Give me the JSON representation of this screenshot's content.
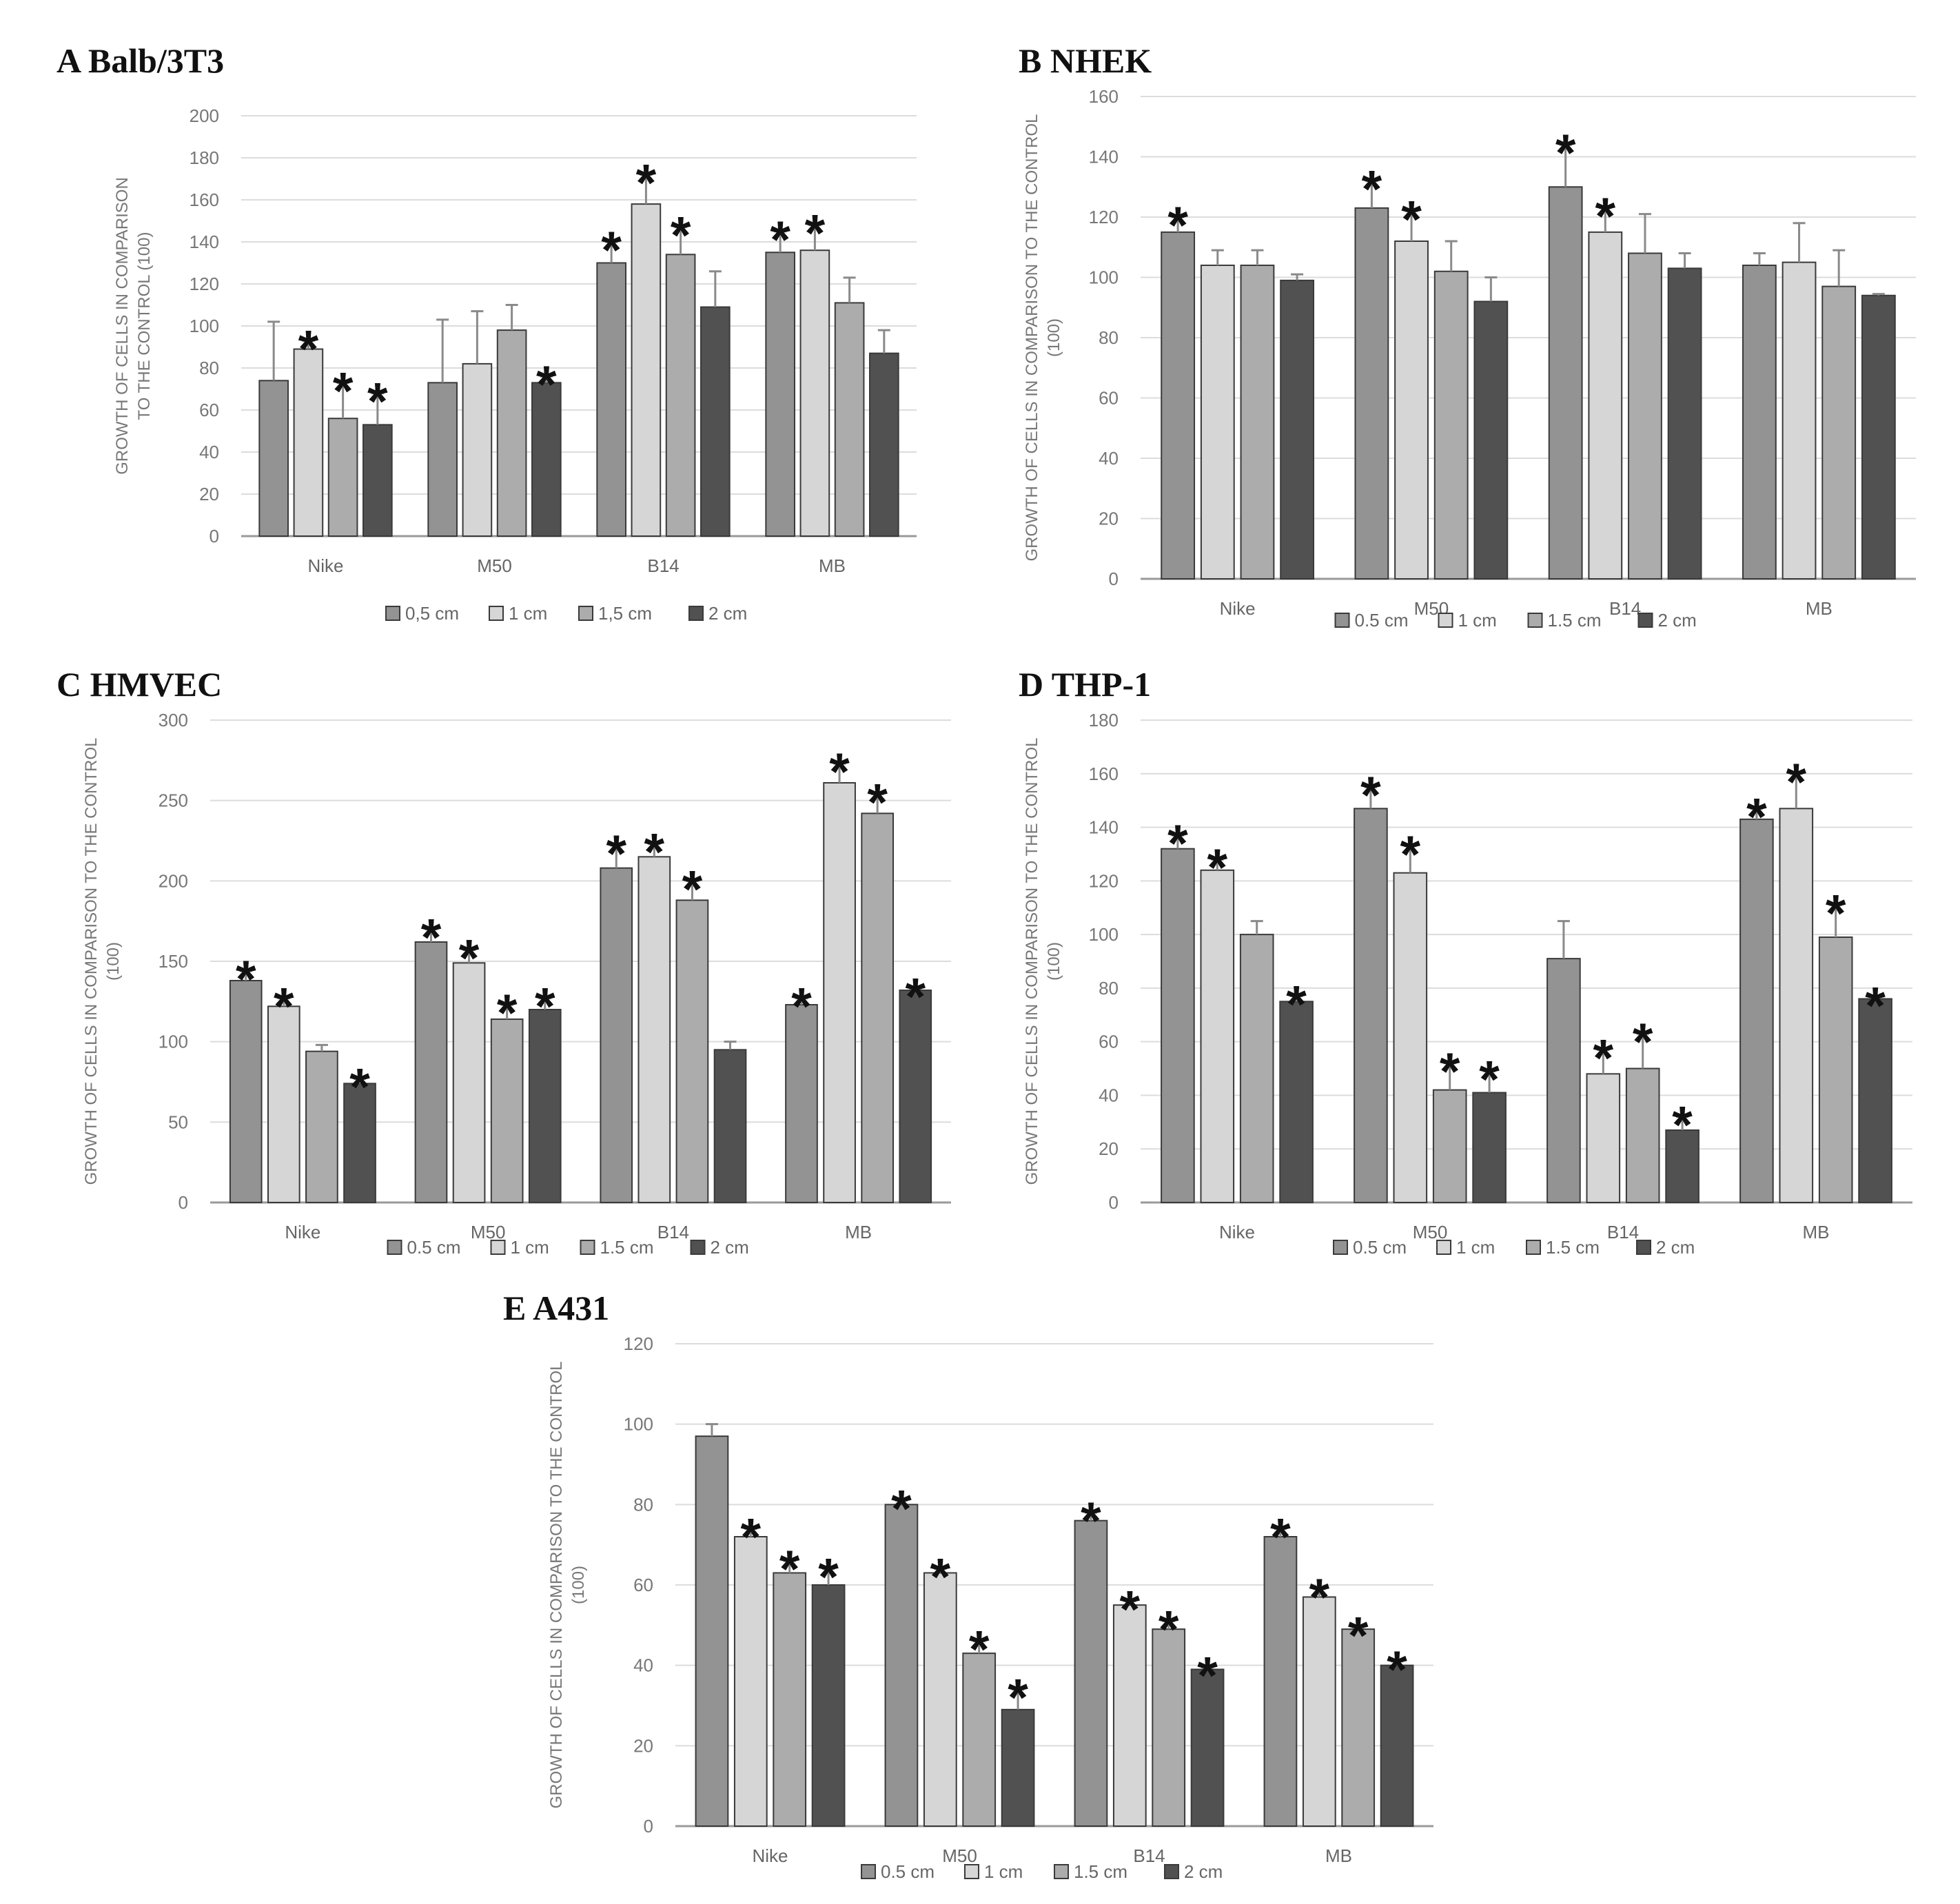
{
  "chart_data": [
    {
      "type": "bar",
      "title": "A Balb/3T3",
      "ylabel": [
        "GROWTH OF CELLS IN COMPARISON",
        "TO THE CONTROL (100)"
      ],
      "xlabel": "",
      "categories": [
        "Nike",
        "M50",
        "B14",
        "MB"
      ],
      "ylim": [
        0,
        200
      ],
      "ytick_step": 20,
      "legend": [
        "0,5 cm",
        "1 cm",
        "1,5 cm",
        "2 cm"
      ],
      "series": [
        {
          "name": "0,5 cm",
          "values": [
            74,
            73,
            130,
            135
          ],
          "errors": [
            28,
            30,
            10,
            10
          ],
          "sig": [
            false,
            false,
            true,
            true
          ]
        },
        {
          "name": "1 cm",
          "values": [
            89,
            82,
            158,
            136
          ],
          "errors": [
            4,
            25,
            14,
            12
          ],
          "sig": [
            true,
            false,
            true,
            true
          ]
        },
        {
          "name": "1,5 cm",
          "values": [
            56,
            98,
            134,
            111
          ],
          "errors": [
            17,
            12,
            13,
            12
          ],
          "sig": [
            true,
            false,
            true,
            false
          ]
        },
        {
          "name": "2 cm",
          "values": [
            53,
            73,
            109,
            87
          ],
          "errors": [
            15,
            3,
            17,
            11
          ],
          "sig": [
            true,
            true,
            false,
            false
          ]
        }
      ]
    },
    {
      "type": "bar",
      "title": "B NHEK",
      "ylabel": [
        "GROWTH OF CELLS IN COMPARISON TO THE CONTROL",
        "(100)"
      ],
      "xlabel": "",
      "categories": [
        "Nike",
        "M50",
        "B14",
        "MB"
      ],
      "ylim": [
        0,
        160
      ],
      "ytick_step": 20,
      "legend": [
        "0.5 cm",
        "1 cm",
        "1.5 cm",
        "2 cm"
      ],
      "series": [
        {
          "name": "0.5 cm",
          "values": [
            115,
            123,
            130,
            104
          ],
          "errors": [
            5,
            9,
            14,
            4
          ],
          "sig": [
            true,
            true,
            true,
            false
          ]
        },
        {
          "name": "1 cm",
          "values": [
            104,
            112,
            115,
            105
          ],
          "errors": [
            5,
            10,
            8,
            13
          ],
          "sig": [
            false,
            true,
            true,
            false
          ]
        },
        {
          "name": "1.5 cm",
          "values": [
            104,
            102,
            108,
            97
          ],
          "errors": [
            5,
            10,
            13,
            12
          ],
          "sig": [
            false,
            false,
            false,
            false
          ]
        },
        {
          "name": "2 cm",
          "values": [
            99,
            92,
            103,
            94
          ],
          "errors": [
            2,
            8,
            5,
            0.5
          ],
          "sig": [
            false,
            false,
            false,
            false
          ]
        }
      ]
    },
    {
      "type": "bar",
      "title": "C HMVEC",
      "ylabel": [
        "GROWTH OF CELLS IN COMPARISON TO THE CONTROL",
        "(100)"
      ],
      "xlabel": "",
      "categories": [
        "Nike",
        "M50",
        "B14",
        "MB"
      ],
      "ylim": [
        0,
        300
      ],
      "ytick_step": 50,
      "legend": [
        "0.5 cm",
        "1 cm",
        "1.5 cm",
        "2 cm"
      ],
      "series": [
        {
          "name": "0.5 cm",
          "values": [
            138,
            162,
            208,
            123
          ],
          "errors": [
            6,
            8,
            14,
            4
          ],
          "sig": [
            true,
            true,
            true,
            true
          ]
        },
        {
          "name": "1 cm",
          "values": [
            122,
            149,
            215,
            261
          ],
          "errors": [
            5,
            8,
            8,
            12
          ],
          "sig": [
            true,
            true,
            true,
            true
          ]
        },
        {
          "name": "1.5 cm",
          "values": [
            94,
            114,
            188,
            242
          ],
          "errors": [
            4,
            9,
            12,
            12
          ],
          "sig": [
            false,
            true,
            true,
            true
          ]
        },
        {
          "name": "2 cm",
          "values": [
            74,
            120,
            95,
            132
          ],
          "errors": [
            3,
            7,
            5,
            1
          ],
          "sig": [
            true,
            true,
            false,
            true
          ]
        }
      ]
    },
    {
      "type": "bar",
      "title": "D THP-1",
      "ylabel": [
        "GROWTH OF CELLS IN COMPARISON TO THE CONTROL",
        "(100)"
      ],
      "xlabel": "",
      "categories": [
        "Nike",
        "M50",
        "B14",
        "MB"
      ],
      "ylim": [
        0,
        180
      ],
      "ytick_step": 20,
      "legend": [
        "0.5 cm",
        "1 cm",
        "1.5 cm",
        "2 cm"
      ],
      "series": [
        {
          "name": "0.5 cm",
          "values": [
            132,
            147,
            91,
            143
          ],
          "errors": [
            5,
            8,
            14,
            4
          ],
          "sig": [
            true,
            true,
            false,
            true
          ]
        },
        {
          "name": "1 cm",
          "values": [
            124,
            123,
            48,
            147
          ],
          "errors": [
            4,
            10,
            9,
            13
          ],
          "sig": [
            true,
            true,
            true,
            true
          ]
        },
        {
          "name": "1.5 cm",
          "values": [
            100,
            42,
            50,
            99
          ],
          "errors": [
            5,
            10,
            13,
            12
          ],
          "sig": [
            false,
            true,
            true,
            true
          ]
        },
        {
          "name": "2 cm",
          "values": [
            75,
            41,
            27,
            76
          ],
          "errors": [
            2,
            8,
            5,
            0.5
          ],
          "sig": [
            true,
            true,
            true,
            true
          ]
        }
      ]
    },
    {
      "type": "bar",
      "title": "E A431",
      "ylabel": [
        "GROWTH OF CELLS IN COMPARISON TO THE CONTROL",
        "(100)"
      ],
      "xlabel": "",
      "categories": [
        "Nike",
        "M50",
        "B14",
        "MB"
      ],
      "ylim": [
        0,
        120
      ],
      "ytick_step": 20,
      "legend": [
        "0.5 cm",
        "1 cm",
        "1.5 cm",
        "2 cm"
      ],
      "series": [
        {
          "name": "0.5 cm",
          "values": [
            97,
            80,
            76,
            72
          ],
          "errors": [
            3,
            1,
            2,
            2
          ],
          "sig": [
            false,
            true,
            true,
            true
          ]
        },
        {
          "name": "1 cm",
          "values": [
            72,
            63,
            55,
            57
          ],
          "errors": [
            2,
            1,
            1,
            2
          ],
          "sig": [
            true,
            true,
            true,
            true
          ]
        },
        {
          "name": "1.5 cm",
          "values": [
            63,
            43,
            49,
            49
          ],
          "errors": [
            3,
            3,
            2,
            0.5
          ],
          "sig": [
            true,
            true,
            true,
            true
          ]
        },
        {
          "name": "2 cm",
          "values": [
            60,
            29,
            39,
            40
          ],
          "errors": [
            4,
            5,
            0.5,
            1
          ],
          "sig": [
            true,
            true,
            true,
            true
          ]
        }
      ]
    }
  ],
  "significance_marker": "*",
  "colors": {
    "series": [
      "#939393",
      "#d6d6d6",
      "#acacac",
      "#515151"
    ],
    "grid": "#dcdcdc",
    "axis": "#9a9a9a",
    "error_bar": "#8a8a8a"
  }
}
